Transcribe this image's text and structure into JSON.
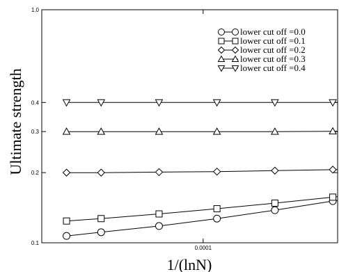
{
  "chart_data": {
    "type": "line",
    "xlabel": "1/(lnN)",
    "ylabel": "Ultimate strength",
    "x_scale": "log",
    "y_scale": "log",
    "ylim": [
      0.1,
      1.0
    ],
    "x_ticks": [
      {
        "value": 0.0001,
        "label": "0.0001"
      }
    ],
    "y_ticks": [
      {
        "value": 0.1,
        "label": "0.1"
      },
      {
        "value": 0.2,
        "label": "0.2"
      },
      {
        "value": 0.3,
        "label": "0.3"
      },
      {
        "value": 0.4,
        "label": "0.4"
      },
      {
        "value": 1.0,
        "label": "1.0"
      }
    ],
    "legend_position": "top-right",
    "series": [
      {
        "name": "lower cut off =0.0",
        "marker": "circle",
        "x": [
          1.95e-05,
          2.95e-05,
          5.9e-05,
          0.000118,
          0.000236,
          0.000472
        ],
        "y": [
          0.107,
          0.111,
          0.118,
          0.127,
          0.138,
          0.151
        ]
      },
      {
        "name": "lower cut off =0.1",
        "marker": "square",
        "x": [
          1.95e-05,
          2.95e-05,
          5.9e-05,
          0.000118,
          0.000236,
          0.000472
        ],
        "y": [
          0.124,
          0.127,
          0.133,
          0.14,
          0.148,
          0.157
        ]
      },
      {
        "name": "lower cut off =0.2",
        "marker": "diamond",
        "x": [
          1.95e-05,
          2.95e-05,
          5.9e-05,
          0.000118,
          0.000236,
          0.000472
        ],
        "y": [
          0.2,
          0.2,
          0.201,
          0.202,
          0.204,
          0.206
        ]
      },
      {
        "name": "lower cut off =0.3",
        "marker": "triangle-up",
        "x": [
          1.95e-05,
          2.95e-05,
          5.9e-05,
          0.000118,
          0.000236,
          0.000472
        ],
        "y": [
          0.3,
          0.3,
          0.3,
          0.3,
          0.3,
          0.301
        ]
      },
      {
        "name": "lower cut off =0.4",
        "marker": "triangle-down",
        "x": [
          1.95e-05,
          2.95e-05,
          5.9e-05,
          0.000118,
          0.000236,
          0.000472
        ],
        "y": [
          0.4,
          0.4,
          0.4,
          0.4,
          0.4,
          0.4
        ]
      }
    ]
  }
}
